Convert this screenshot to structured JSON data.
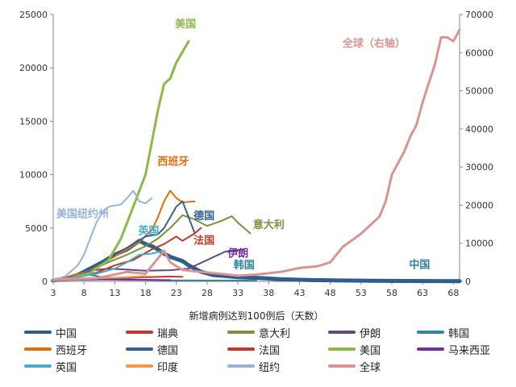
{
  "chart_data": {
    "type": "line",
    "title": "",
    "xlabel": "新增病例达到100例后（天数）",
    "ylabel_left": "",
    "ylabel_right": "",
    "x_ticks": [
      3,
      8,
      13,
      18,
      23,
      28,
      33,
      38,
      43,
      48,
      53,
      58,
      63,
      68
    ],
    "xlim": [
      3,
      69
    ],
    "ylim_left": [
      0,
      25000
    ],
    "ylim_right": [
      0,
      70000
    ],
    "y_ticks_left": [
      0,
      5000,
      10000,
      15000,
      20000,
      25000
    ],
    "y_ticks_right": [
      0,
      10000,
      20000,
      30000,
      40000,
      50000,
      60000,
      70000
    ],
    "grid": false,
    "legend_position": "bottom",
    "series": [
      {
        "name": "中国",
        "color": "#2e5d8e",
        "width": 5,
        "axis": "left",
        "points": [
          [
            3,
            100
          ],
          [
            5,
            250
          ],
          [
            7,
            600
          ],
          [
            9,
            1200
          ],
          [
            11,
            1800
          ],
          [
            13,
            2500
          ],
          [
            15,
            3000
          ],
          [
            17,
            3800
          ],
          [
            18,
            3500
          ],
          [
            19,
            3300
          ],
          [
            20,
            3000
          ],
          [
            21,
            2600
          ],
          [
            22,
            2300
          ],
          [
            23,
            2100
          ],
          [
            24,
            1900
          ],
          [
            25,
            1500
          ],
          [
            27,
            900
          ],
          [
            29,
            600
          ],
          [
            31,
            500
          ],
          [
            33,
            400
          ],
          [
            35,
            350
          ],
          [
            37,
            300
          ],
          [
            40,
            200
          ],
          [
            45,
            120
          ],
          [
            50,
            80
          ],
          [
            55,
            60
          ],
          [
            60,
            40
          ],
          [
            65,
            30
          ],
          [
            69,
            20
          ]
        ]
      },
      {
        "name": "瑞典",
        "color": "#c0392b",
        "width": 2,
        "axis": "left",
        "points": [
          [
            3,
            100
          ],
          [
            8,
            200
          ],
          [
            13,
            300
          ],
          [
            18,
            400
          ],
          [
            22,
            450
          ],
          [
            24,
            420
          ]
        ]
      },
      {
        "name": "意大利",
        "color": "#77933c",
        "width": 2,
        "axis": "left",
        "points": [
          [
            3,
            100
          ],
          [
            6,
            400
          ],
          [
            9,
            1000
          ],
          [
            12,
            1800
          ],
          [
            15,
            2500
          ],
          [
            18,
            3300
          ],
          [
            20,
            4000
          ],
          [
            22,
            5000
          ],
          [
            24,
            6200
          ],
          [
            26,
            5800
          ],
          [
            28,
            5200
          ],
          [
            30,
            5600
          ],
          [
            32,
            6100
          ],
          [
            33,
            5500
          ],
          [
            35,
            4500
          ]
        ]
      },
      {
        "name": "伊朗",
        "color": "#604a7b",
        "width": 2,
        "axis": "left",
        "points": [
          [
            3,
            100
          ],
          [
            6,
            500
          ],
          [
            9,
            1000
          ],
          [
            12,
            1200
          ],
          [
            15,
            1100
          ],
          [
            18,
            1000
          ],
          [
            22,
            1050
          ],
          [
            25,
            1200
          ],
          [
            28,
            2000
          ],
          [
            31,
            2800
          ],
          [
            34,
            3000
          ]
        ]
      },
      {
        "name": "韩国",
        "color": "#31859c",
        "width": 2,
        "axis": "left",
        "points": [
          [
            3,
            100
          ],
          [
            5,
            300
          ],
          [
            7,
            550
          ],
          [
            8,
            800
          ],
          [
            9,
            600
          ],
          [
            11,
            400
          ],
          [
            13,
            300
          ],
          [
            15,
            200
          ],
          [
            18,
            150
          ],
          [
            22,
            100
          ],
          [
            28,
            80
          ],
          [
            32,
            80
          ],
          [
            36,
            70
          ]
        ]
      },
      {
        "name": "西班牙",
        "color": "#e46c0a",
        "width": 2,
        "axis": "left",
        "points": [
          [
            3,
            100
          ],
          [
            6,
            500
          ],
          [
            9,
            1000
          ],
          [
            12,
            2000
          ],
          [
            15,
            3000
          ],
          [
            17,
            3700
          ],
          [
            19,
            4800
          ],
          [
            20,
            6000
          ],
          [
            21,
            7500
          ],
          [
            22,
            8500
          ],
          [
            23,
            7800
          ],
          [
            24,
            7400
          ],
          [
            26,
            7500
          ]
        ]
      },
      {
        "name": "德国",
        "color": "#376092",
        "width": 2,
        "axis": "left",
        "points": [
          [
            3,
            100
          ],
          [
            7,
            500
          ],
          [
            10,
            1200
          ],
          [
            13,
            2500
          ],
          [
            16,
            3500
          ],
          [
            18,
            4200
          ],
          [
            20,
            4400
          ],
          [
            21,
            5000
          ],
          [
            22,
            6000
          ],
          [
            23,
            7000
          ],
          [
            24,
            7500
          ],
          [
            25,
            6000
          ],
          [
            26,
            4500
          ]
        ]
      },
      {
        "name": "法国",
        "color": "#c0392b",
        "width": 2,
        "axis": "left",
        "points": [
          [
            3,
            100
          ],
          [
            7,
            400
          ],
          [
            10,
            800
          ],
          [
            13,
            1500
          ],
          [
            16,
            2000
          ],
          [
            19,
            3000
          ],
          [
            21,
            3500
          ],
          [
            23,
            4200
          ],
          [
            24,
            3800
          ],
          [
            26,
            4500
          ],
          [
            27,
            5000
          ]
        ]
      },
      {
        "name": "美国",
        "color": "#8db84a",
        "width": 3,
        "axis": "left",
        "points": [
          [
            3,
            100
          ],
          [
            6,
            300
          ],
          [
            9,
            800
          ],
          [
            12,
            2000
          ],
          [
            14,
            4000
          ],
          [
            16,
            7000
          ],
          [
            18,
            10000
          ],
          [
            19,
            13000
          ],
          [
            20,
            16000
          ],
          [
            21,
            18500
          ],
          [
            22,
            19000
          ],
          [
            23,
            20500
          ],
          [
            24,
            21500
          ],
          [
            25,
            22500
          ]
        ]
      },
      {
        "name": "马来西亚",
        "color": "#7030a0",
        "width": 2,
        "axis": "left",
        "points": [
          [
            3,
            100
          ],
          [
            7,
            150
          ],
          [
            11,
            180
          ],
          [
            15,
            150
          ],
          [
            19,
            130
          ],
          [
            22,
            120
          ]
        ]
      },
      {
        "name": "英国",
        "color": "#4bacc6",
        "width": 2,
        "axis": "left",
        "points": [
          [
            3,
            100
          ],
          [
            7,
            400
          ],
          [
            10,
            700
          ],
          [
            13,
            1200
          ],
          [
            15,
            1800
          ],
          [
            17,
            2500
          ],
          [
            19,
            2600
          ],
          [
            21,
            2900
          ]
        ]
      },
      {
        "name": "印度",
        "color": "#f79646",
        "width": 2,
        "axis": "left",
        "points": [
          [
            3,
            100
          ],
          [
            7,
            200
          ],
          [
            11,
            300
          ],
          [
            15,
            400
          ],
          [
            18,
            500
          ]
        ]
      },
      {
        "name": "纽约",
        "color": "#95b3d7",
        "width": 2,
        "axis": "left",
        "points": [
          [
            3,
            100
          ],
          [
            5,
            500
          ],
          [
            7,
            1500
          ],
          [
            8,
            2500
          ],
          [
            9,
            4000
          ],
          [
            10,
            5500
          ],
          [
            11,
            6500
          ],
          [
            12,
            7000
          ],
          [
            14,
            7200
          ],
          [
            15,
            7800
          ],
          [
            16,
            8500
          ],
          [
            17,
            7500
          ],
          [
            18,
            7300
          ],
          [
            19,
            7800
          ]
        ]
      },
      {
        "name": "全球",
        "color": "#d99594",
        "width": 3,
        "axis": "right",
        "points": [
          [
            3,
            500
          ],
          [
            10,
            800
          ],
          [
            15,
            2500
          ],
          [
            18,
            2000
          ],
          [
            20,
            6000
          ],
          [
            21,
            8000
          ],
          [
            22,
            5000
          ],
          [
            24,
            3000
          ],
          [
            27,
            2500
          ],
          [
            30,
            2000
          ],
          [
            33,
            1500
          ],
          [
            36,
            1800
          ],
          [
            40,
            2500
          ],
          [
            43,
            3500
          ],
          [
            46,
            4000
          ],
          [
            48,
            5000
          ],
          [
            50,
            9000
          ],
          [
            53,
            12500
          ],
          [
            56,
            17000
          ],
          [
            57,
            21000
          ],
          [
            58,
            28000
          ],
          [
            60,
            34000
          ],
          [
            61,
            38000
          ],
          [
            62,
            41000
          ],
          [
            63,
            47000
          ],
          [
            64,
            52000
          ],
          [
            65,
            57000
          ],
          [
            66,
            64000
          ],
          [
            67,
            64000
          ],
          [
            68,
            63000
          ],
          [
            69,
            66000
          ]
        ]
      }
    ],
    "annotations": [
      {
        "text": "美国",
        "x": 24.5,
        "y": 23800,
        "axis": "left",
        "color": "#8db84a"
      },
      {
        "text": "西班牙",
        "x": 22.5,
        "y": 10900,
        "axis": "left",
        "color": "#e46c0a"
      },
      {
        "text": "美国纽约州",
        "x": 3.5,
        "y": 6000,
        "axis": "left",
        "color": "#95b3d7",
        "anchor": "start"
      },
      {
        "text": "英国",
        "x": 18.5,
        "y": 4400,
        "axis": "left",
        "color": "#4bacc6"
      },
      {
        "text": "德国",
        "x": 27.5,
        "y": 5800,
        "axis": "left",
        "color": "#376092"
      },
      {
        "text": "意大利",
        "x": 38,
        "y": 5000,
        "axis": "left",
        "color": "#77933c"
      },
      {
        "text": "法国",
        "x": 27.5,
        "y": 3500,
        "axis": "left",
        "color": "#c0392b"
      },
      {
        "text": "伊朗",
        "x": 33,
        "y": 2300,
        "axis": "left",
        "color": "#7030a0"
      },
      {
        "text": "韩国",
        "x": 34,
        "y": 1200,
        "axis": "left",
        "color": "#31859c"
      },
      {
        "text": "全球（右轴）",
        "x": 50,
        "y": 61500,
        "axis": "right",
        "color": "#d99594",
        "anchor": "start"
      },
      {
        "text": "中国",
        "x": 62.5,
        "y": 3500,
        "axis": "right",
        "color": "#31859c"
      }
    ]
  }
}
